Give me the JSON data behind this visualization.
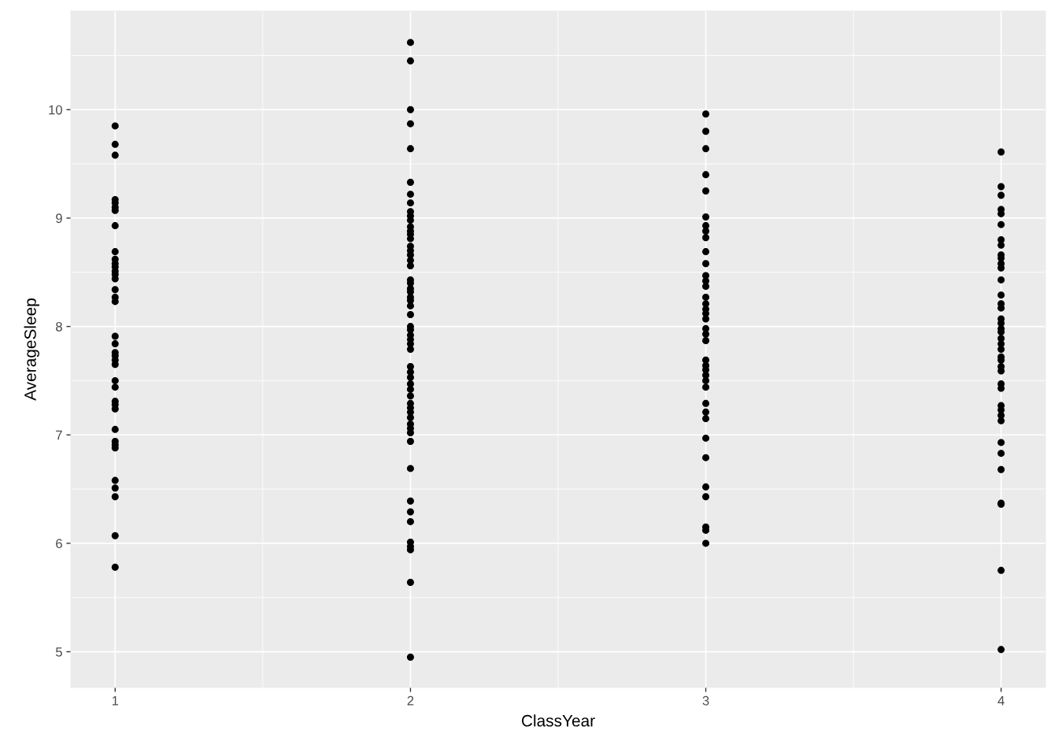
{
  "chart_data": {
    "type": "scatter",
    "xlabel": "ClassYear",
    "ylabel": "AverageSleep",
    "xlim": [
      0.85,
      4.15
    ],
    "ylim": [
      4.67,
      10.91
    ],
    "xticks": [
      1,
      2,
      3,
      4
    ],
    "yticks": [
      5,
      6,
      7,
      8,
      9,
      10
    ],
    "grid": true,
    "marker": "circle",
    "series": [
      {
        "color": "#000000",
        "x": [
          1,
          1,
          1,
          1,
          1,
          1,
          1,
          1,
          1,
          1,
          1,
          1,
          1,
          1,
          1,
          1,
          1,
          1,
          1,
          1,
          1,
          1,
          1,
          1,
          1,
          1,
          1,
          1,
          1,
          1,
          1,
          1,
          1,
          1,
          1,
          1,
          1,
          1,
          2,
          2,
          2,
          2,
          2,
          2,
          2,
          2,
          2,
          2,
          2,
          2,
          2,
          2,
          2,
          2,
          2,
          2,
          2,
          2,
          2,
          2,
          2,
          2,
          2,
          2,
          2,
          2,
          2,
          2,
          2,
          2,
          2,
          2,
          2,
          2,
          2,
          2,
          2,
          2,
          2,
          2,
          2,
          2,
          2,
          2,
          2,
          2,
          2,
          2,
          2,
          2,
          2,
          2,
          2,
          2,
          2,
          3,
          3,
          3,
          3,
          3,
          3,
          3,
          3,
          3,
          3,
          3,
          3,
          3,
          3,
          3,
          3,
          3,
          3,
          3,
          3,
          3,
          3,
          3,
          3,
          3,
          3,
          3,
          3,
          3,
          3,
          3,
          3,
          3,
          3,
          3,
          3,
          3,
          3,
          4,
          4,
          4,
          4,
          4,
          4,
          4,
          4,
          4,
          4,
          4,
          4,
          4,
          4,
          4,
          4,
          4,
          4,
          4,
          4,
          4,
          4,
          4,
          4,
          4,
          4,
          4,
          4,
          4,
          4,
          4,
          4,
          4,
          4,
          4,
          4,
          4,
          4,
          4,
          4
        ],
        "values": [
          9.85,
          9.68,
          9.58,
          9.17,
          9.14,
          9.1,
          9.07,
          8.93,
          8.69,
          8.62,
          8.58,
          8.55,
          8.51,
          8.48,
          8.44,
          8.34,
          8.27,
          8.23,
          7.91,
          7.84,
          7.76,
          7.73,
          7.69,
          7.65,
          7.5,
          7.44,
          7.31,
          7.28,
          7.24,
          7.05,
          6.94,
          6.91,
          6.88,
          6.58,
          6.51,
          6.43,
          6.07,
          5.78,
          10.62,
          10.45,
          10.0,
          9.87,
          9.64,
          9.33,
          9.22,
          9.14,
          9.06,
          9.02,
          8.98,
          8.92,
          8.88,
          8.85,
          8.81,
          8.74,
          8.7,
          8.66,
          8.61,
          8.56,
          8.43,
          8.4,
          8.35,
          8.32,
          8.27,
          8.24,
          8.19,
          8.11,
          8.0,
          7.97,
          7.92,
          7.88,
          7.84,
          7.79,
          7.63,
          7.58,
          7.53,
          7.47,
          7.42,
          7.36,
          7.29,
          7.25,
          7.21,
          7.16,
          7.1,
          7.06,
          7.02,
          6.94,
          6.69,
          6.39,
          6.29,
          6.2,
          6.01,
          5.97,
          5.94,
          5.64,
          4.95,
          9.96,
          9.8,
          9.64,
          9.4,
          9.25,
          9.01,
          8.93,
          8.88,
          8.82,
          8.69,
          8.58,
          8.47,
          8.42,
          8.37,
          8.27,
          8.21,
          8.16,
          8.12,
          8.07,
          7.98,
          7.93,
          7.87,
          7.69,
          7.64,
          7.6,
          7.55,
          7.5,
          7.44,
          7.29,
          7.21,
          7.15,
          6.97,
          6.79,
          6.52,
          6.43,
          6.15,
          6.12,
          6.0,
          9.61,
          9.29,
          9.21,
          9.08,
          9.04,
          8.94,
          8.8,
          8.75,
          8.66,
          8.63,
          8.58,
          8.54,
          8.43,
          8.29,
          8.21,
          8.17,
          8.07,
          8.03,
          7.98,
          7.95,
          7.89,
          7.84,
          7.79,
          7.72,
          7.69,
          7.63,
          7.59,
          7.47,
          7.43,
          7.27,
          7.23,
          7.18,
          7.13,
          6.93,
          6.83,
          6.68,
          6.37,
          6.36,
          5.75,
          5.02
        ]
      }
    ]
  }
}
